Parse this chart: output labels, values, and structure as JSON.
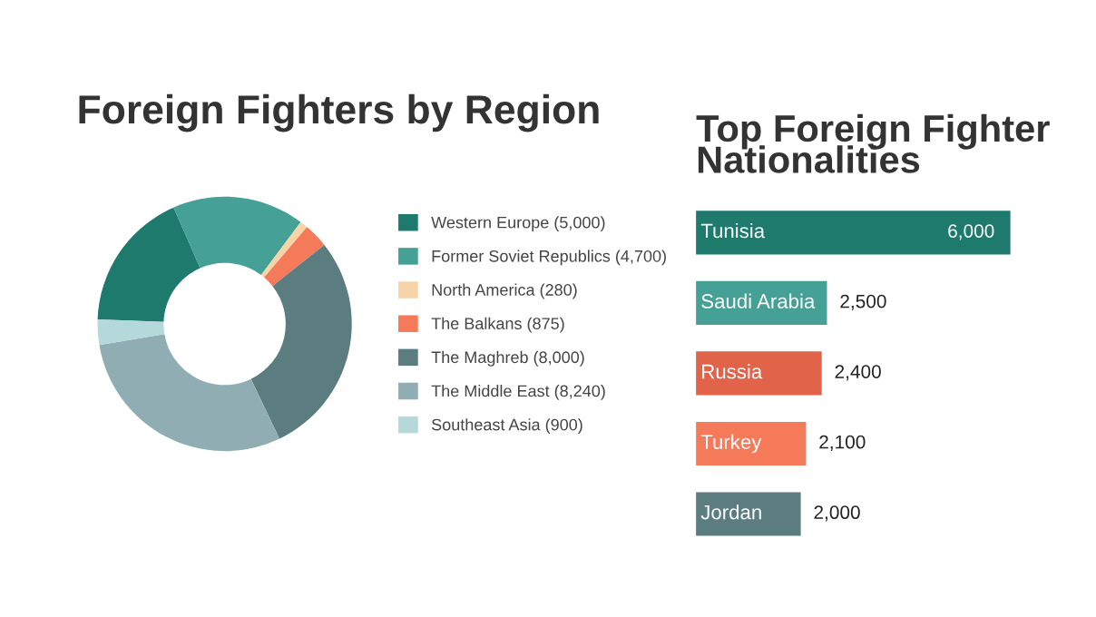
{
  "chart_data": [
    {
      "type": "donut",
      "title": "Foreign Fighters by Region",
      "categories": [
        "Western Europe (5,000)",
        "Former Soviet Republics (4,700)",
        "North America (280)",
        "The Balkans (875)",
        "The Maghreb (8,000)",
        "The Middle East (8,240)",
        "Southeast Asia (900)"
      ],
      "values": [
        5000,
        4700,
        280,
        875,
        8000,
        8240,
        900
      ],
      "colors": [
        "#1f7a6e",
        "#45a196",
        "#f5d5a8",
        "#f47a5a",
        "#5b7d80",
        "#8fadb2",
        "#b5d8da"
      ],
      "legend": "right"
    },
    {
      "type": "bar",
      "orientation": "horizontal",
      "title": "Top Foreign Fighter\nNationalities",
      "categories": [
        "Tunisia",
        "Saudi Arabia",
        "Russia",
        "Turkey",
        "Jordan"
      ],
      "values": [
        6000,
        2500,
        2400,
        2100,
        2000
      ],
      "value_labels": [
        "6,000",
        "2,500",
        "2,400",
        "2,100",
        "2,000"
      ],
      "colors": [
        "#1f7a6e",
        "#45a196",
        "#e0634a",
        "#f47a5a",
        "#5b7d80"
      ]
    }
  ]
}
